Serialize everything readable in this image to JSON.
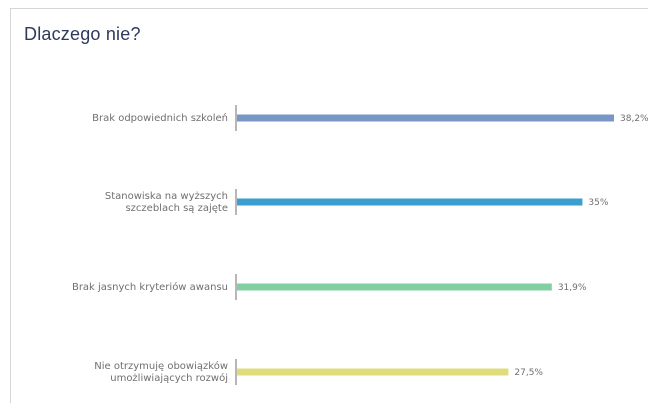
{
  "chart_data": {
    "type": "bar",
    "orientation": "horizontal",
    "title": "Dlaczego nie?",
    "categories": [
      [
        "Brak odpowiednich szkoleń"
      ],
      [
        "Stanowiska na wyższych",
        "szczeblach są zajęte"
      ],
      [
        "Brak jasnych kryteriów awansu"
      ],
      [
        "Nie otrzymuję obowiązków",
        "umożliwiających rozwój"
      ]
    ],
    "values": [
      38.2,
      35,
      31.9,
      27.5
    ],
    "value_labels": [
      "38,2%",
      "35%",
      "31,9%",
      "27,5%"
    ],
    "colors": [
      "#7896c6",
      "#3a9fcf",
      "#82cfa2",
      "#dfdc7c"
    ],
    "xlim": [
      0,
      38.2
    ],
    "grid": false,
    "legend": "none"
  }
}
